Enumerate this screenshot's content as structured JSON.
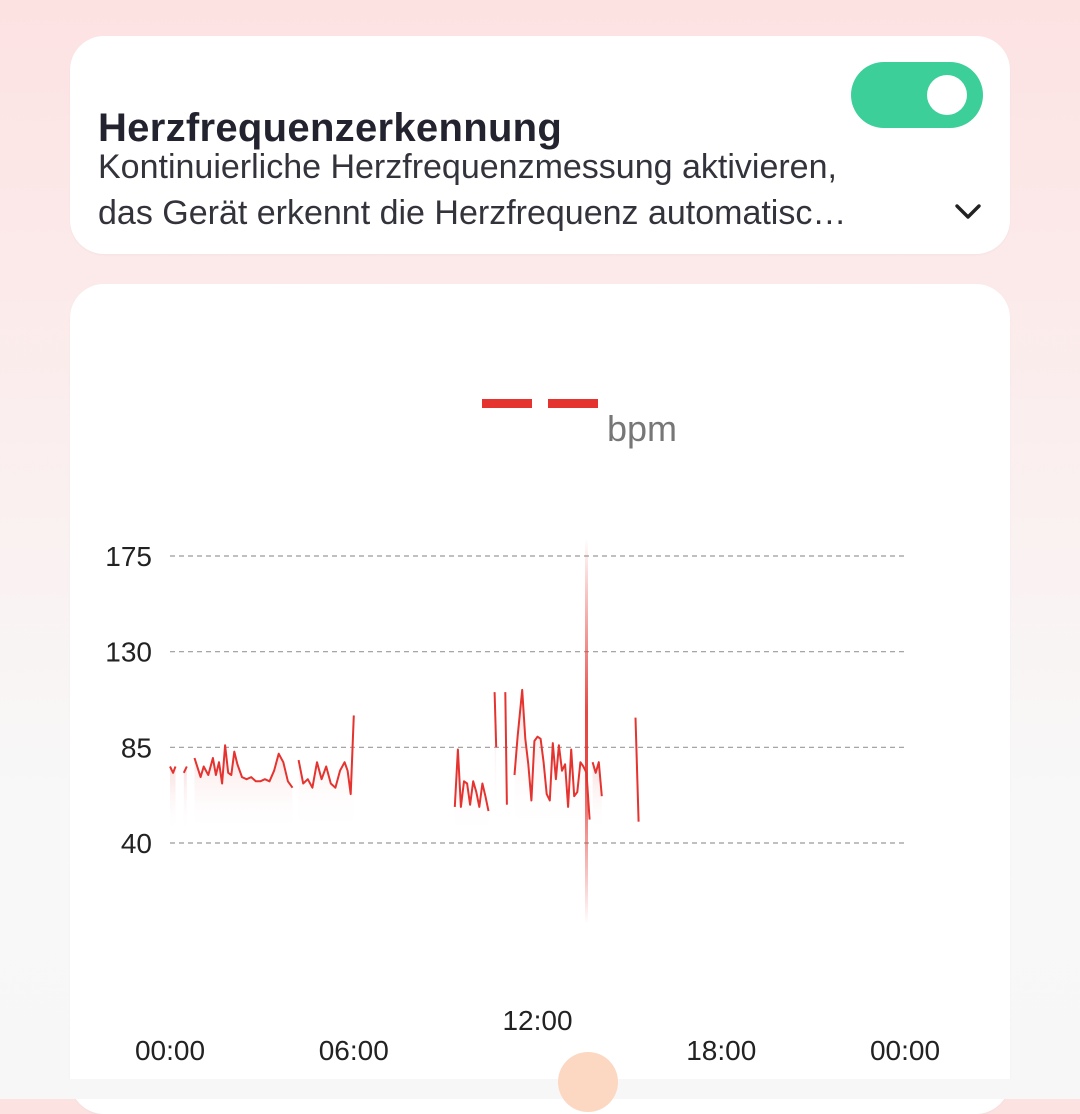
{
  "settings": {
    "title": "Herzfrequenzerkennung",
    "description_line1": "Kontinuierliche Herzfrequenzmessung aktivieren,",
    "description_line2": "das Gerät erkennt die Herzfrequenz automatisc…",
    "toggle_on": true
  },
  "current_reading": {
    "value": "— —",
    "unit": "bpm"
  },
  "colors": {
    "accent": "#e5332f",
    "toggle_on": "#3ccf99",
    "handle": "#fcd7c1"
  },
  "chart_data": {
    "type": "line",
    "title": "",
    "xlabel": "",
    "ylabel": "",
    "y_ticks": [
      "175",
      "130",
      "85",
      "40"
    ],
    "x_ticks": [
      "00:00",
      "06:00",
      "12:00",
      "18:00",
      "00:00"
    ],
    "x_tick_hours": [
      0,
      6,
      12,
      18,
      24
    ],
    "ylim": [
      40,
      175
    ],
    "xlim_hours": [
      0,
      24
    ],
    "grid": "horizontal dashed",
    "cursor_hour": 13.6,
    "series": [
      {
        "segments": [
          [
            [
              0.0,
              76
            ],
            [
              0.1,
              73
            ],
            [
              0.18,
              76
            ]
          ],
          [
            [
              0.45,
              73
            ],
            [
              0.55,
              76
            ]
          ],
          [
            [
              0.8,
              80
            ],
            [
              1.0,
              71
            ],
            [
              1.1,
              76
            ],
            [
              1.25,
              72
            ],
            [
              1.4,
              80
            ],
            [
              1.5,
              72
            ],
            [
              1.6,
              78
            ],
            [
              1.7,
              68
            ],
            [
              1.8,
              86
            ],
            [
              1.9,
              73
            ],
            [
              2.0,
              72
            ],
            [
              2.1,
              83
            ],
            [
              2.2,
              77
            ],
            [
              2.35,
              71
            ],
            [
              2.5,
              70
            ],
            [
              2.65,
              71
            ],
            [
              2.8,
              69
            ],
            [
              2.95,
              69
            ],
            [
              3.1,
              70
            ],
            [
              3.25,
              69
            ],
            [
              3.4,
              74
            ],
            [
              3.55,
              82
            ],
            [
              3.7,
              78
            ],
            [
              3.85,
              69
            ],
            [
              4.0,
              66
            ]
          ],
          [
            [
              4.2,
              79
            ],
            [
              4.35,
              68
            ],
            [
              4.5,
              70
            ],
            [
              4.65,
              66
            ],
            [
              4.8,
              78
            ],
            [
              4.95,
              70
            ],
            [
              5.1,
              76
            ],
            [
              5.25,
              68
            ],
            [
              5.4,
              66
            ],
            [
              5.55,
              74
            ],
            [
              5.7,
              78
            ],
            [
              5.8,
              74
            ],
            [
              5.9,
              63
            ],
            [
              6.0,
              100
            ]
          ],
          [
            [
              9.3,
              57
            ],
            [
              9.4,
              84
            ],
            [
              9.5,
              57
            ],
            [
              9.6,
              69
            ],
            [
              9.7,
              68
            ],
            [
              9.8,
              58
            ],
            [
              9.9,
              69
            ],
            [
              10.0,
              64
            ],
            [
              10.1,
              57
            ],
            [
              10.2,
              68
            ],
            [
              10.3,
              62
            ],
            [
              10.4,
              55
            ]
          ],
          [
            [
              10.6,
              111
            ],
            [
              10.65,
              85
            ]
          ],
          [
            [
              10.95,
              111
            ],
            [
              11.0,
              58
            ]
          ],
          [
            [
              11.25,
              72
            ],
            [
              11.35,
              90
            ],
            [
              11.5,
              112
            ],
            [
              11.6,
              89
            ],
            [
              11.7,
              77
            ],
            [
              11.8,
              60
            ],
            [
              11.9,
              88
            ],
            [
              12.0,
              90
            ],
            [
              12.1,
              89
            ],
            [
              12.2,
              78
            ],
            [
              12.3,
              63
            ],
            [
              12.4,
              60
            ],
            [
              12.5,
              87
            ],
            [
              12.6,
              70
            ],
            [
              12.7,
              86
            ],
            [
              12.8,
              74
            ],
            [
              12.9,
              77
            ],
            [
              13.0,
              57
            ],
            [
              13.1,
              84
            ],
            [
              13.2,
              62
            ],
            [
              13.3,
              64
            ],
            [
              13.4,
              78
            ],
            [
              13.5,
              76
            ],
            [
              13.6,
              73
            ],
            [
              13.7,
              51
            ]
          ],
          [
            [
              13.8,
              78
            ],
            [
              13.9,
              73
            ],
            [
              14.0,
              78
            ],
            [
              14.1,
              62
            ]
          ],
          [
            [
              15.2,
              99
            ],
            [
              15.3,
              50
            ]
          ]
        ]
      }
    ]
  }
}
